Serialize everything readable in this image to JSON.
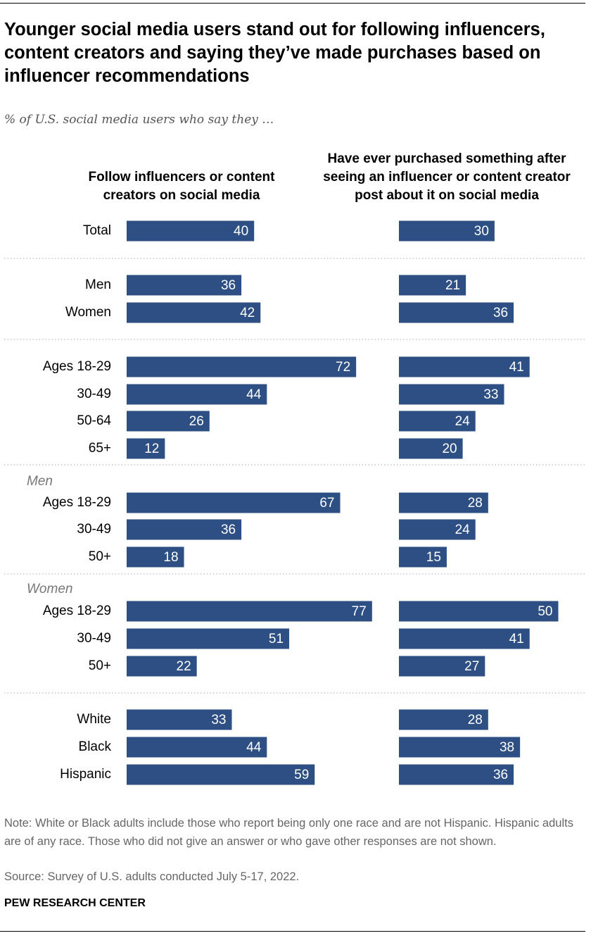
{
  "title": "Younger social media users stand out for following influencers, content creators and saying they’ve made purchases based on influencer recommendations",
  "subtitle": "% of U.S. social media users who say they …",
  "note": "Note: White or Black adults include those who report being only one race and are not Hispanic. Hispanic adults are of any race. Those who did not give an answer or who gave other responses are not shown.",
  "source": "Source: Survey of U.S. adults conducted July 5-17, 2022.",
  "credit": "PEW RESEARCH CENTER",
  "chart_data": {
    "type": "bar",
    "categories": [
      "Total",
      "Men",
      "Women",
      "Ages 18-29",
      "30-49",
      "50-64",
      "65+",
      "Ages 18-29",
      "30-49",
      "50+",
      "Ages 18-29",
      "30-49",
      "50+",
      "White",
      "Black",
      "Hispanic"
    ],
    "group_labels": [
      "Men",
      "Women"
    ],
    "series": [
      {
        "name": "Follow influencers or content creators on social media",
        "color": "#2d4f83",
        "values": [
          40,
          36,
          42,
          72,
          44,
          26,
          12,
          67,
          36,
          18,
          77,
          51,
          22,
          33,
          44,
          59
        ]
      },
      {
        "name": "Have ever purchased something after seeing an influencer or content creator post about it on social media",
        "color": "#2d4f83",
        "values": [
          30,
          21,
          36,
          41,
          33,
          24,
          20,
          28,
          24,
          15,
          50,
          41,
          27,
          28,
          38,
          36
        ]
      }
    ]
  }
}
